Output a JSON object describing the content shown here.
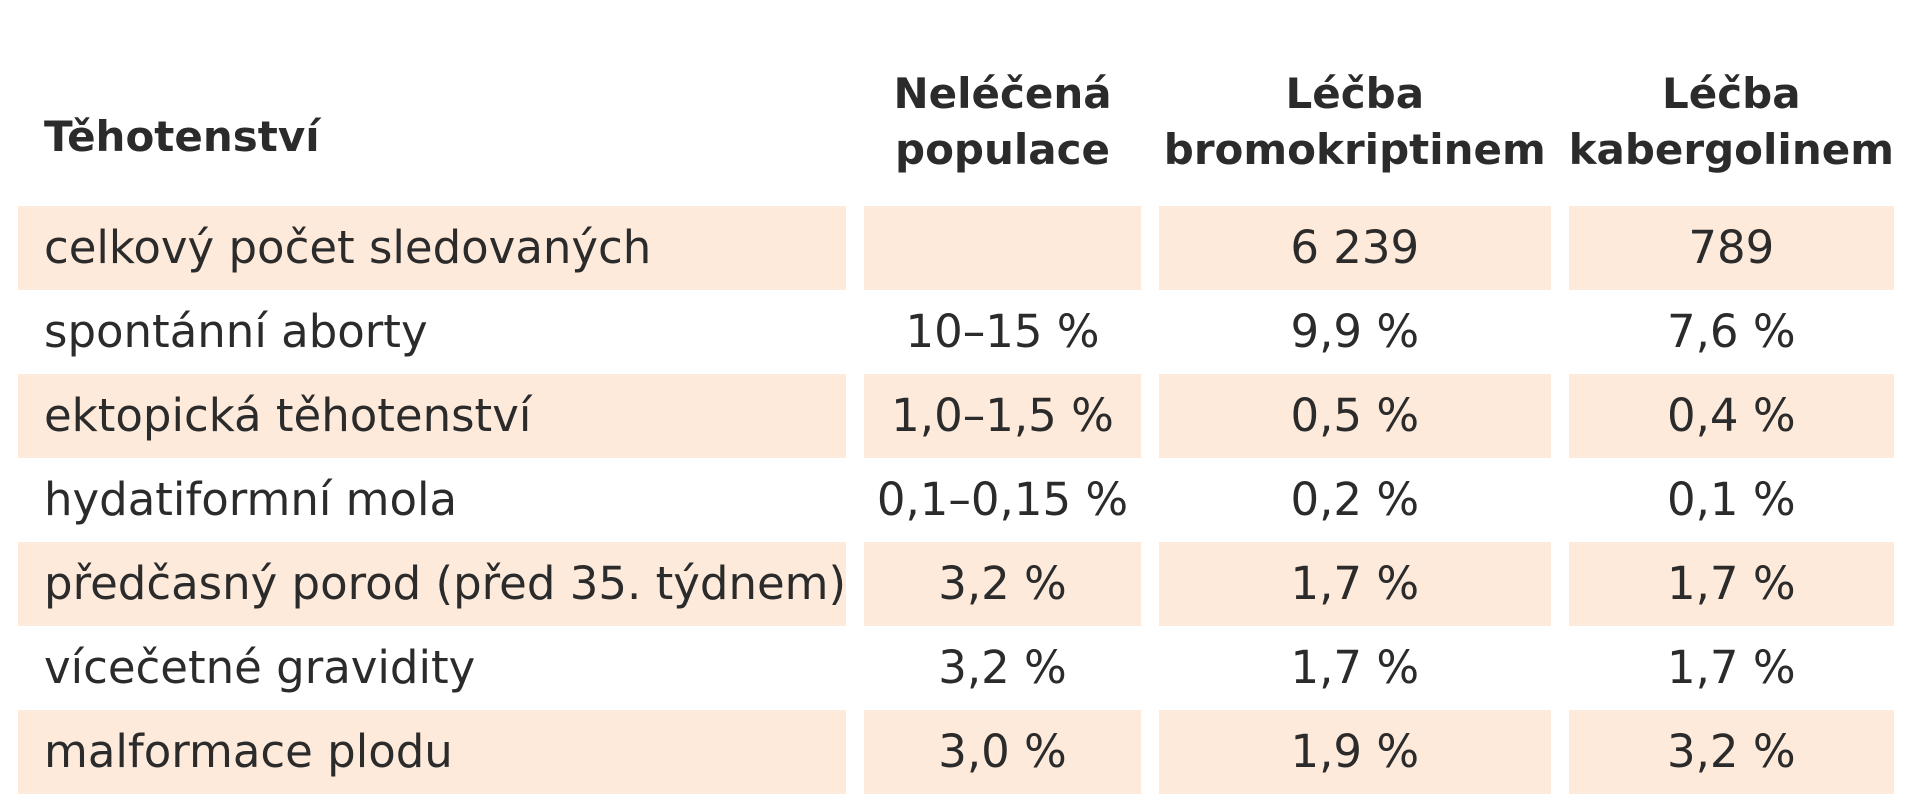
{
  "header": {
    "row_label": "Těhotenství",
    "columns": [
      [
        "Neléčená",
        "populace"
      ],
      [
        "Léčba",
        "bromokriptinem"
      ],
      [
        "Léčba",
        "kabergolinem"
      ]
    ]
  },
  "rows": [
    {
      "label": "celkový počet sledovaných",
      "values": [
        "",
        "6 239",
        "789"
      ]
    },
    {
      "label": "spontánní aborty",
      "values": [
        "10–15 %",
        "9,9 %",
        "7,6 %"
      ]
    },
    {
      "label": "ektopická těhotenství",
      "values": [
        "1,0–1,5 %",
        "0,5 %",
        "0,4 %"
      ]
    },
    {
      "label": "hydatiformní mola",
      "values": [
        "0,1–0,15 %",
        "0,2 %",
        "0,1 %"
      ]
    },
    {
      "label": "předčasný porod (před 35. týdnem)",
      "values": [
        "3,2 %",
        "1,7 %",
        "1,7 %"
      ]
    },
    {
      "label": "vícečetné gravidity",
      "values": [
        "3,2 %",
        "1,7 %",
        "1,7 %"
      ]
    },
    {
      "label": "malformace plodu",
      "values": [
        "3,0 %",
        "1,9 %",
        "3,2 %"
      ]
    }
  ],
  "colors": {
    "row_shade": "#fdeadb",
    "text": "#2b2b2b"
  }
}
